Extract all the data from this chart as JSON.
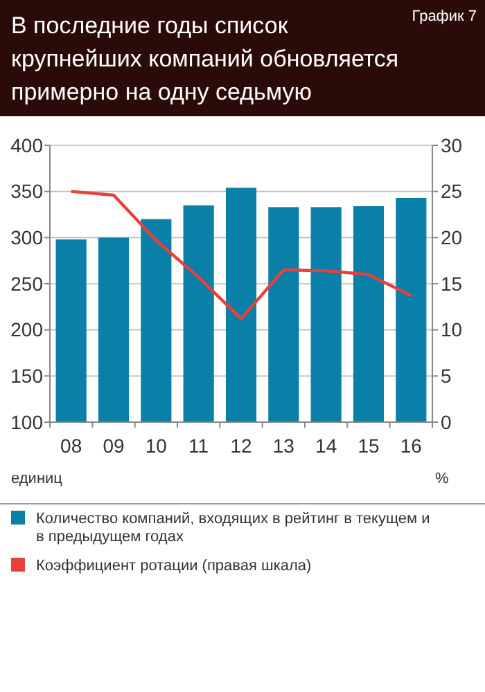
{
  "chart_data": {
    "type": "bar",
    "title": "В последние годы список крупнейших компаний обновляется примерно на одну седьмую",
    "annotations": [
      "График 7"
    ],
    "categories": [
      "08",
      "09",
      "10",
      "11",
      "12",
      "13",
      "14",
      "15",
      "16"
    ],
    "series": [
      {
        "name": "Количество компаний, входящих в рейтинг в текущем и в предыдущем годах",
        "color": "#0a7fa8",
        "values": [
          298,
          300,
          320,
          335,
          354,
          333,
          333,
          334,
          343
        ]
      },
      {
        "name": "Коэффициент ротации (правая шкала)",
        "type": "line",
        "axis": "y2",
        "color": "#e8403a",
        "values": [
          25,
          24.6,
          19.7,
          15.7,
          11.2,
          16.5,
          16.4,
          16.0,
          13.7
        ]
      }
    ],
    "ylabel": "единиц",
    "y2label": "%",
    "ylim": [
      100,
      400
    ],
    "yticks": [
      100,
      150,
      200,
      250,
      300,
      350,
      400
    ],
    "y2lim": [
      0,
      30
    ],
    "y2ticks": [
      0,
      5,
      10,
      15,
      20,
      25,
      30
    ],
    "grid": "y",
    "legend": "bottom",
    "marker": "none",
    "line_style": "solid"
  }
}
